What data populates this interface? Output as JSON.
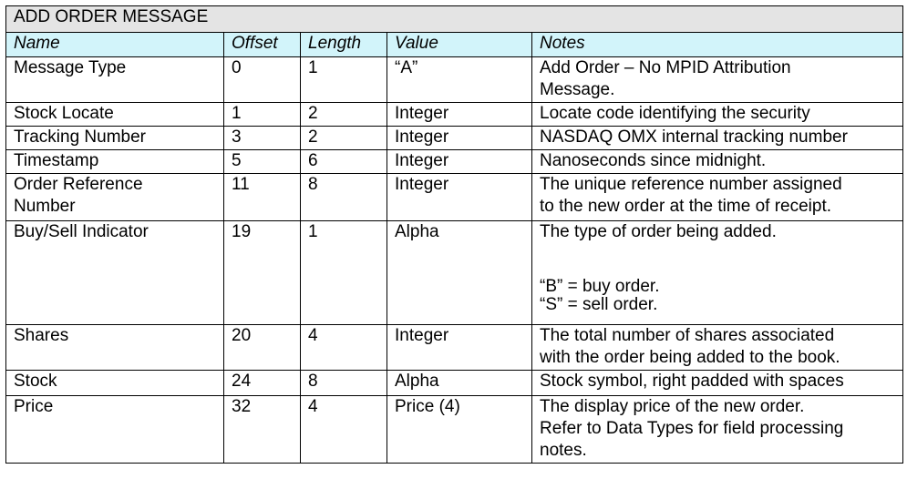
{
  "title": "ADD ORDER MESSAGE",
  "columns": [
    "Name",
    "Offset",
    "Length",
    "Value",
    "Notes"
  ],
  "rows": [
    {
      "name": "Message Type",
      "offset": "0",
      "length": "1",
      "value": "“A”",
      "notes": "Add Order – No MPID Attribution\nMessage."
    },
    {
      "name": "Stock Locate",
      "offset": "1",
      "length": "2",
      "value": "Integer",
      "notes": "Locate code identifying the security"
    },
    {
      "name": "Tracking Number",
      "offset": "3",
      "length": "2",
      "value": "Integer",
      "notes": "NASDAQ OMX internal tracking number"
    },
    {
      "name": "Timestamp",
      "offset": "5",
      "length": "6",
      "value": "Integer",
      "notes": "Nanoseconds since midnight."
    },
    {
      "name": "Order Reference\nNumber",
      "offset": "11",
      "length": "8",
      "value": "Integer",
      "notes": "The unique reference number assigned\nto the new order at the time of receipt."
    },
    {
      "name": "Buy/Sell Indicator",
      "offset": "19",
      "length": "1",
      "value": "Alpha",
      "notes": "The type of order being added.\n\n\n“B” = buy order.\n“S” = sell order."
    },
    {
      "name": "Shares",
      "offset": "20",
      "length": "4",
      "value": "Integer",
      "notes": "The total number of shares associated\nwith the order being added to the book."
    },
    {
      "name": "Stock",
      "offset": "24",
      "length": "8",
      "value": "Alpha",
      "notes": "Stock symbol, right padded with spaces"
    },
    {
      "name": "Price",
      "offset": "32",
      "length": "4",
      "value": "Price (4)",
      "notes": "The display price of the new order.\nRefer to Data Types for field processing\nnotes."
    }
  ]
}
